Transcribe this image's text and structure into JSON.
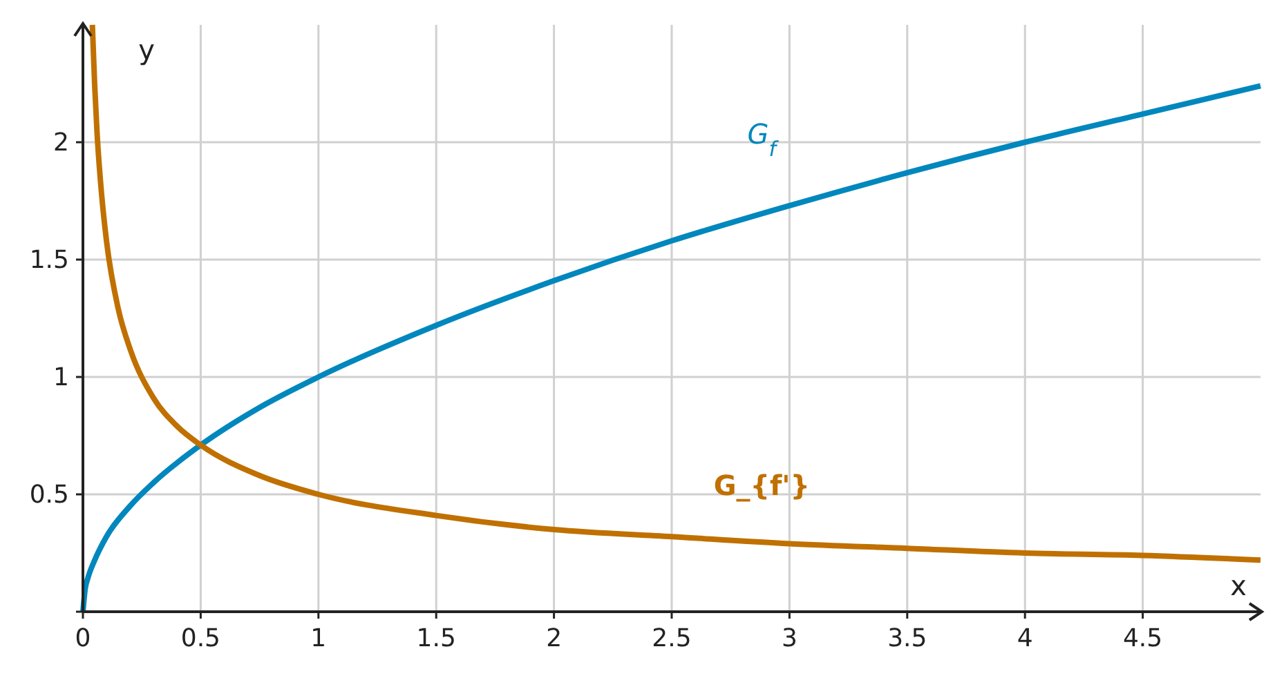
{
  "chart_data": {
    "type": "line",
    "xlabel": "x",
    "ylabel": "y",
    "xlim": [
      0,
      5
    ],
    "ylim": [
      0,
      2.5
    ],
    "xticks": [
      0,
      0.5,
      1,
      1.5,
      2,
      2.5,
      3,
      3.5,
      4,
      4.5
    ],
    "yticks": [
      {
        "value": 0,
        "label": null
      },
      0.5,
      1,
      1.5,
      2
    ],
    "grid": true,
    "marker": "none",
    "line_style": "solid",
    "series": [
      {
        "name": "G$_{f}$",
        "color": "#0087bd",
        "x": [
          0,
          0.01,
          0.02,
          0.05,
          0.1,
          0.2,
          0.3,
          0.5,
          0.75,
          1,
          1.5,
          2,
          2.5,
          3,
          3.5,
          4,
          4.5,
          5
        ],
        "values": [
          0,
          0.1,
          0.14,
          0.22,
          0.32,
          0.45,
          0.55,
          0.71,
          0.87,
          1,
          1.22,
          1.41,
          1.58,
          1.73,
          1.87,
          2,
          2.12,
          2.24
        ]
      },
      {
        "name": "G_{f'}",
        "color": "#c07000",
        "x": [
          0.04,
          0.05,
          0.06,
          0.08,
          0.1,
          0.15,
          0.2,
          0.3,
          0.4,
          0.5,
          0.75,
          1,
          1.5,
          2,
          2.5,
          3,
          3.5,
          4,
          4.5,
          5
        ],
        "values": [
          2.5,
          2.24,
          2.04,
          1.77,
          1.58,
          1.29,
          1.12,
          0.91,
          0.79,
          0.71,
          0.58,
          0.5,
          0.41,
          0.35,
          0.32,
          0.29,
          0.27,
          0.25,
          0.24,
          0.22
        ]
      }
    ]
  }
}
